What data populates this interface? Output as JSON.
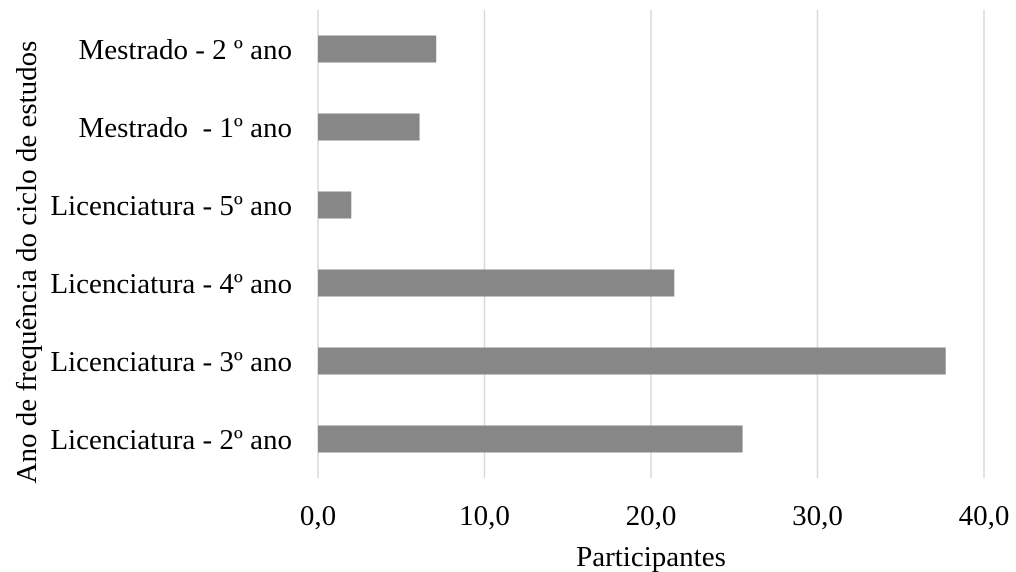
{
  "chart_data": {
    "type": "bar",
    "orientation": "horizontal",
    "categories": [
      "Licenciatura - 2º ano",
      "Licenciatura - 3º ano",
      "Licenciatura - 4º ano",
      "Licenciatura - 5º ano",
      "Mestrado  - 1º ano",
      "Mestrado - 2 º ano"
    ],
    "values": [
      25.5,
      37.7,
      21.4,
      2.0,
      6.1,
      7.1
    ],
    "xlabel": "Participantes",
    "ylabel": "Ano de frequência do ciclo de estudos",
    "xlim": [
      0,
      40
    ],
    "xticks": [
      0,
      10,
      20,
      30,
      40
    ],
    "xtick_labels": [
      "0,0",
      "10,0",
      "20,0",
      "30,0",
      "40,0"
    ],
    "grid": "vertical",
    "legend": "none",
    "bar_color": "#878787"
  }
}
